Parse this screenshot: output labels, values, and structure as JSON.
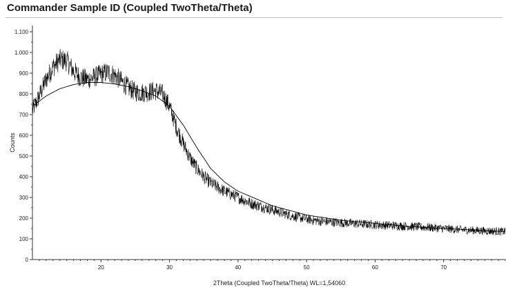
{
  "window": {
    "title": "Commander Sample ID (Coupled TwoTheta/Theta)"
  },
  "chart_data": {
    "type": "line",
    "title": "Commander Sample ID (Coupled TwoTheta/Theta)",
    "xlabel": "2Theta (Coupled TwoTheta/Theta) WL=1,54060",
    "ylabel": "Counts",
    "xlim": [
      10,
      79
    ],
    "ylim": [
      0,
      1130
    ],
    "grid": false,
    "legend": "none",
    "x_ticks": [
      20,
      30,
      40,
      50,
      60,
      70
    ],
    "x_tick_labels": [
      "20",
      "30",
      "40",
      "50",
      "60",
      "70"
    ],
    "y_ticks": [
      0,
      100,
      200,
      300,
      400,
      500,
      600,
      700,
      800,
      900,
      1000,
      1100
    ],
    "y_tick_labels": [
      "0",
      "100",
      "200",
      "300",
      "400",
      "500",
      "600",
      "700",
      "800",
      "900",
      "1.000",
      "1.100"
    ],
    "series": [
      {
        "style": "noisy-measured",
        "color": "#000000",
        "x": [
          10,
          11,
          12,
          13,
          14,
          15,
          16,
          17,
          18,
          19,
          20,
          21,
          22,
          23,
          24,
          25,
          26,
          27,
          28,
          29,
          30,
          31,
          32,
          33,
          34,
          35,
          36,
          38,
          40,
          42,
          44,
          46,
          48,
          50,
          52,
          55,
          58,
          60,
          62,
          65,
          68,
          70,
          72,
          75,
          79
        ],
        "y": [
          720,
          790,
          870,
          930,
          965,
          960,
          910,
          880,
          870,
          880,
          895,
          905,
          890,
          860,
          830,
          810,
          805,
          810,
          815,
          800,
          740,
          640,
          560,
          490,
          440,
          400,
          370,
          330,
          300,
          270,
          250,
          230,
          210,
          195,
          185,
          178,
          172,
          168,
          165,
          160,
          155,
          150,
          145,
          140,
          135
        ]
      },
      {
        "style": "smooth-fit",
        "color": "#000000",
        "x": [
          10,
          12,
          14,
          16,
          18,
          20,
          22,
          24,
          26,
          28,
          30,
          32,
          34,
          36,
          38,
          40,
          45,
          50,
          55,
          60,
          65,
          70,
          79
        ],
        "y": [
          740,
          790,
          825,
          845,
          855,
          855,
          848,
          835,
          815,
          790,
          740,
          650,
          540,
          440,
          375,
          330,
          260,
          215,
          190,
          175,
          160,
          150,
          135
        ]
      }
    ]
  }
}
